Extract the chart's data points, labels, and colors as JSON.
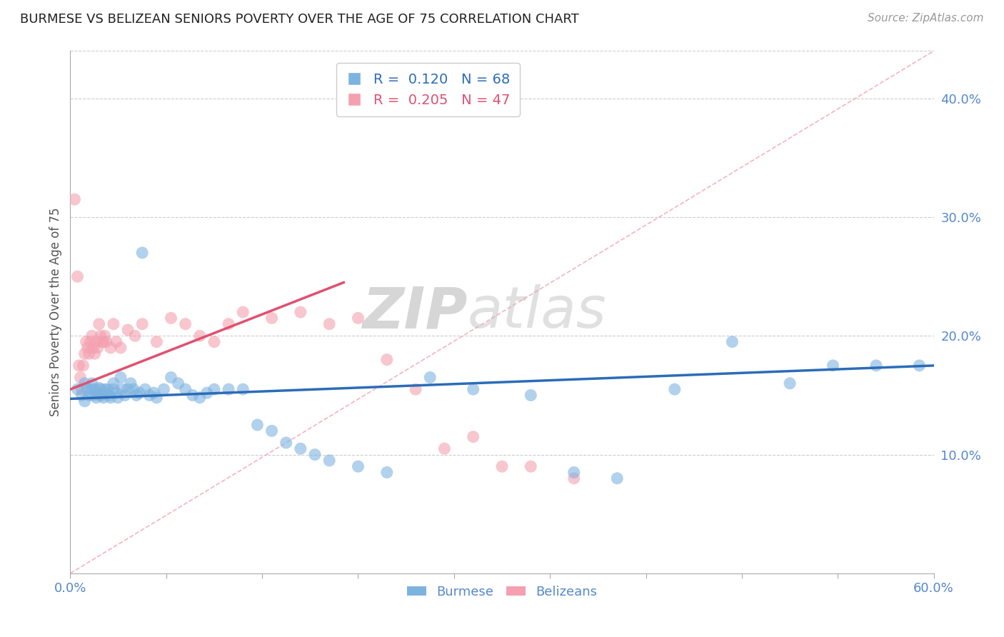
{
  "title": "BURMESE VS BELIZEAN SENIORS POVERTY OVER THE AGE OF 75 CORRELATION CHART",
  "source": "Source: ZipAtlas.com",
  "ylabel": "Seniors Poverty Over the Age of 75",
  "xlim": [
    0.0,
    0.6
  ],
  "ylim": [
    0.0,
    0.44
  ],
  "xtick_positions": [
    0.0,
    0.0667,
    0.1333,
    0.2,
    0.2667,
    0.3333,
    0.4,
    0.4667,
    0.5333,
    0.6
  ],
  "xtick_labels_show": {
    "0.0": "0.0%",
    "0.60": "60.0%"
  },
  "yticks_right": [
    0.1,
    0.2,
    0.3,
    0.4
  ],
  "burmese_R": 0.12,
  "burmese_N": 68,
  "belizean_R": 0.205,
  "belizean_N": 47,
  "burmese_color": "#7EB3E0",
  "belizean_color": "#F4A0B0",
  "burmese_line_color": "#2B6CB8",
  "belizean_line_color": "#E05070",
  "ref_line_color": "#F4A0B0",
  "watermark_text": "ZIPatlas",
  "background_color": "#FFFFFF",
  "burmese_x": [
    0.005,
    0.008,
    0.01,
    0.01,
    0.012,
    0.013,
    0.015,
    0.015,
    0.016,
    0.017,
    0.018,
    0.019,
    0.02,
    0.02,
    0.021,
    0.022,
    0.023,
    0.024,
    0.025,
    0.026,
    0.027,
    0.028,
    0.03,
    0.03,
    0.032,
    0.033,
    0.035,
    0.036,
    0.038,
    0.04,
    0.042,
    0.044,
    0.046,
    0.048,
    0.05,
    0.052,
    0.055,
    0.058,
    0.06,
    0.065,
    0.07,
    0.075,
    0.08,
    0.085,
    0.09,
    0.095,
    0.1,
    0.11,
    0.12,
    0.13,
    0.14,
    0.15,
    0.16,
    0.17,
    0.18,
    0.2,
    0.22,
    0.25,
    0.28,
    0.32,
    0.35,
    0.38,
    0.42,
    0.46,
    0.5,
    0.53,
    0.56,
    0.59
  ],
  "burmese_y": [
    0.155,
    0.15,
    0.145,
    0.16,
    0.155,
    0.15,
    0.155,
    0.16,
    0.15,
    0.155,
    0.148,
    0.152,
    0.156,
    0.15,
    0.155,
    0.15,
    0.148,
    0.155,
    0.152,
    0.155,
    0.15,
    0.148,
    0.16,
    0.155,
    0.152,
    0.148,
    0.165,
    0.155,
    0.15,
    0.155,
    0.16,
    0.155,
    0.15,
    0.152,
    0.27,
    0.155,
    0.15,
    0.152,
    0.148,
    0.155,
    0.165,
    0.16,
    0.155,
    0.15,
    0.148,
    0.152,
    0.155,
    0.155,
    0.155,
    0.125,
    0.12,
    0.11,
    0.105,
    0.1,
    0.095,
    0.09,
    0.085,
    0.165,
    0.155,
    0.15,
    0.085,
    0.08,
    0.155,
    0.195,
    0.16,
    0.175,
    0.175,
    0.175
  ],
  "belizean_x": [
    0.003,
    0.005,
    0.006,
    0.007,
    0.008,
    0.009,
    0.01,
    0.011,
    0.012,
    0.013,
    0.014,
    0.015,
    0.016,
    0.017,
    0.018,
    0.019,
    0.02,
    0.021,
    0.022,
    0.023,
    0.024,
    0.025,
    0.028,
    0.03,
    0.032,
    0.035,
    0.04,
    0.045,
    0.05,
    0.06,
    0.07,
    0.08,
    0.09,
    0.1,
    0.11,
    0.12,
    0.14,
    0.16,
    0.18,
    0.2,
    0.22,
    0.24,
    0.26,
    0.28,
    0.3,
    0.32,
    0.35
  ],
  "belizean_y": [
    0.315,
    0.25,
    0.175,
    0.165,
    0.155,
    0.175,
    0.185,
    0.195,
    0.19,
    0.185,
    0.195,
    0.2,
    0.19,
    0.185,
    0.195,
    0.19,
    0.21,
    0.2,
    0.195,
    0.195,
    0.2,
    0.195,
    0.19,
    0.21,
    0.195,
    0.19,
    0.205,
    0.2,
    0.21,
    0.195,
    0.215,
    0.21,
    0.2,
    0.195,
    0.21,
    0.22,
    0.215,
    0.22,
    0.21,
    0.215,
    0.18,
    0.155,
    0.105,
    0.115,
    0.09,
    0.09,
    0.08
  ],
  "burmese_trend_x": [
    0.0,
    0.6
  ],
  "burmese_trend_y": [
    0.147,
    0.175
  ],
  "belizean_trend_x": [
    0.0,
    0.19
  ],
  "belizean_trend_y": [
    0.155,
    0.245
  ]
}
